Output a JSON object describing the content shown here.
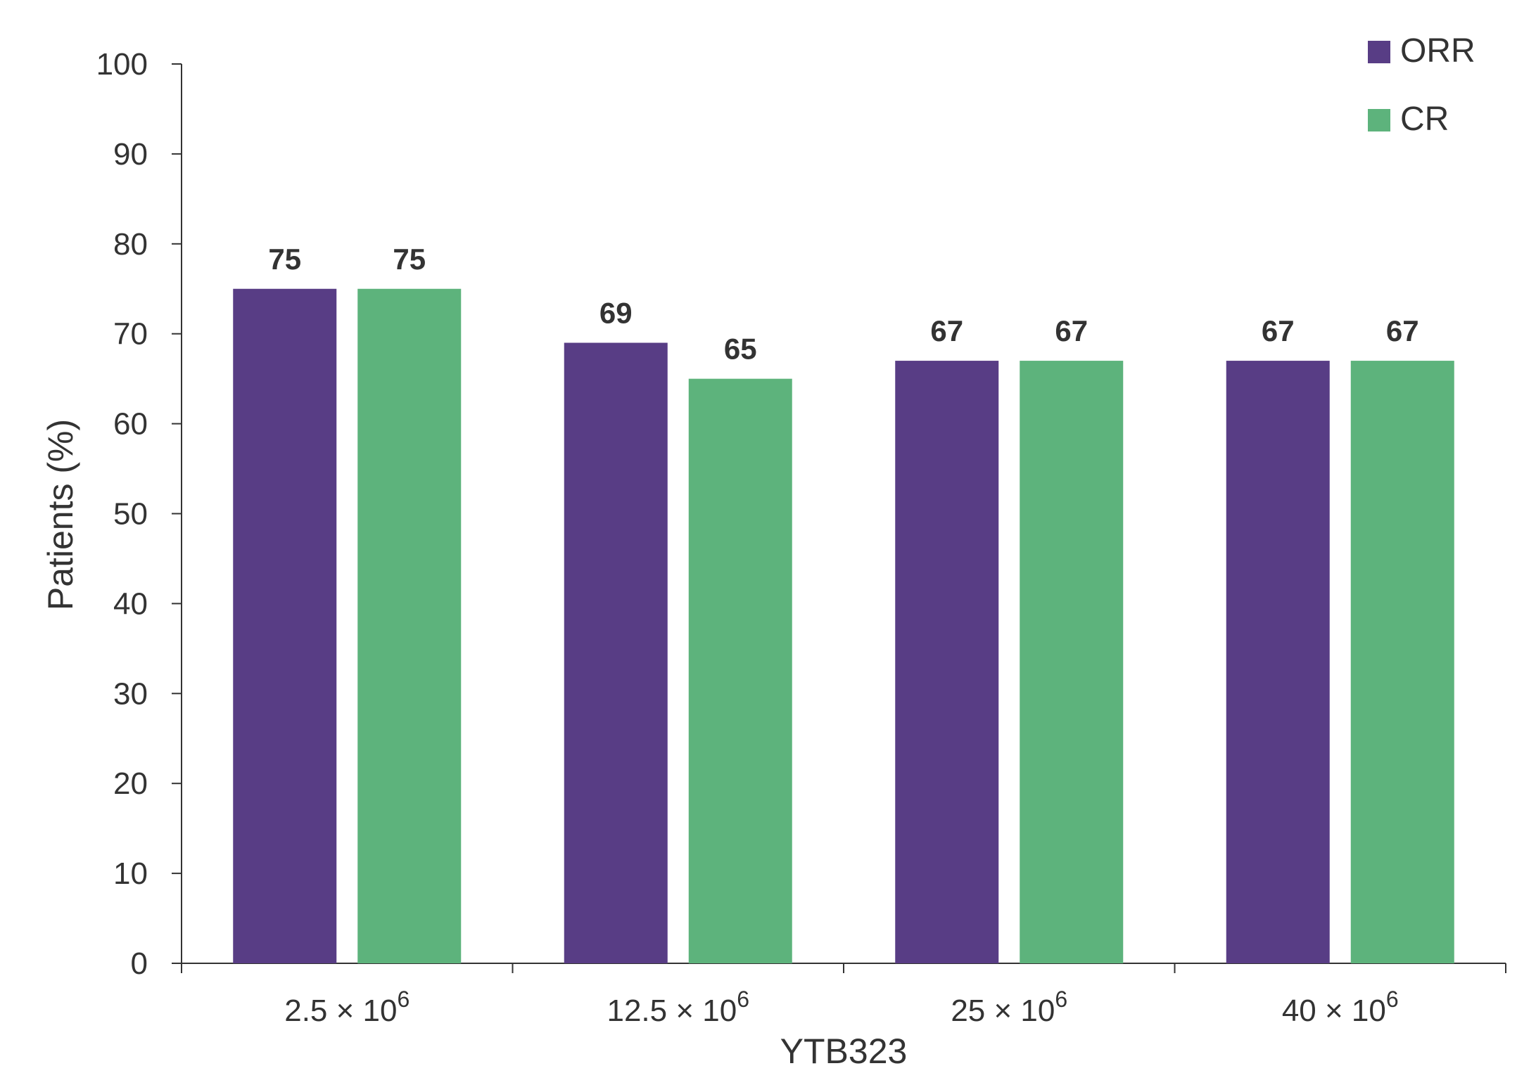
{
  "chart_data": {
    "type": "bar",
    "title": "",
    "xlabel": "YTB323",
    "ylabel": "Patients (%)",
    "ylim": [
      0,
      100
    ],
    "yticks": [
      0,
      10,
      20,
      30,
      40,
      50,
      60,
      70,
      80,
      90,
      100
    ],
    "categories": [
      {
        "base": "2.5",
        "times": "×",
        "power_base": "10",
        "exponent": "6"
      },
      {
        "base": "12.5",
        "times": "×",
        "power_base": "10",
        "exponent": "6"
      },
      {
        "base": "25",
        "times": "×",
        "power_base": "10",
        "exponent": "6"
      },
      {
        "base": "40",
        "times": "×",
        "power_base": "10",
        "exponent": "6"
      }
    ],
    "series": [
      {
        "name": "ORR",
        "color": "#583d85",
        "values": [
          75,
          69,
          67,
          67
        ]
      },
      {
        "name": "CR",
        "color": "#5db37c",
        "values": [
          75,
          65,
          67,
          67
        ]
      }
    ],
    "grid": false,
    "legend_position": "top-right",
    "data_labels": true
  }
}
